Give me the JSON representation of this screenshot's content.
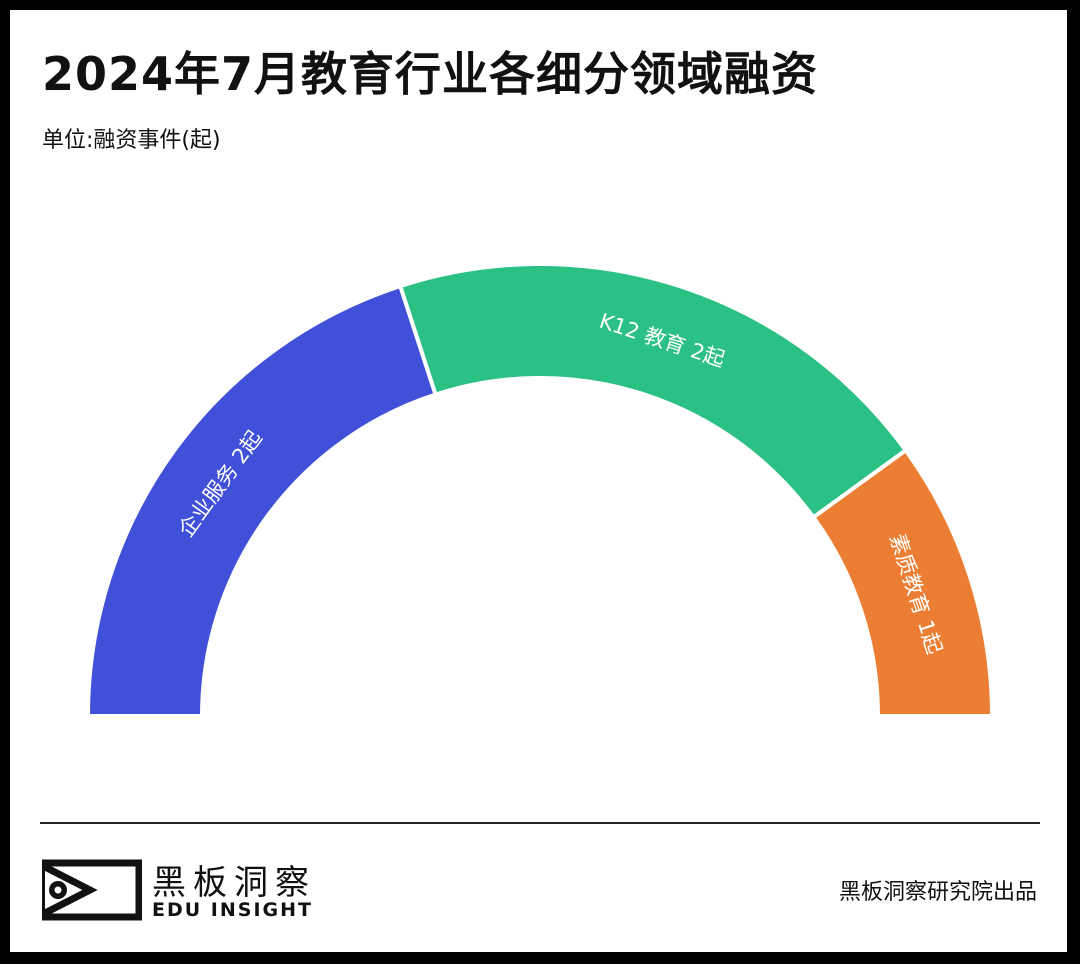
{
  "title": "2024年7月教育行业各细分领域融资",
  "subtitle": "单位:融资事件(起)",
  "footer": {
    "logo_cn": "黑板洞察",
    "logo_en": "EDU INSIGHT",
    "credit": "黑板洞察研究院出品"
  },
  "chart_data": {
    "type": "pie",
    "subtype": "semi-donut",
    "categories": [
      "企业服务",
      "K12教育",
      "素质教育"
    ],
    "values": [
      2,
      2,
      1
    ],
    "unit": "起",
    "labels": [
      "企业服务 2起",
      "K12 教育 2起",
      "素质教育 1起"
    ],
    "colors": [
      "#4150d8",
      "#2cc184",
      "#ec7e33"
    ]
  }
}
